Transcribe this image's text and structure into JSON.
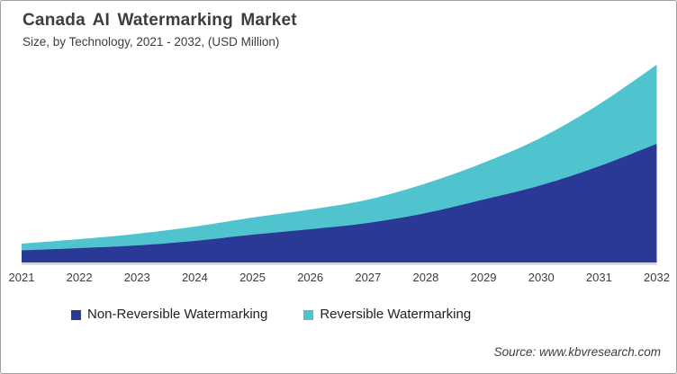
{
  "header": {
    "title": "Canada AI Watermarking Market",
    "subtitle": "Size, by Technology, 2021 - 2032, (USD Million)"
  },
  "source": {
    "label": "Source: www.kbvresearch.com"
  },
  "chart_data": {
    "type": "area",
    "stacked": true,
    "title": "Canada AI Watermarking Market",
    "subtitle": "Size, by Technology, 2021 - 2032, (USD Million)",
    "xlabel": "",
    "ylabel": "",
    "y_axis_labels_visible": false,
    "grid": false,
    "legend_position": "bottom",
    "categories": [
      "2021",
      "2022",
      "2023",
      "2024",
      "2025",
      "2026",
      "2027",
      "2028",
      "2029",
      "2030",
      "2031",
      "2032"
    ],
    "note": "Y axis unlabeled in source image; values are relative estimates read from area heights",
    "series": [
      {
        "name": "Non-Reversible Watermarking",
        "color": "#2A3896",
        "values": [
          13.5,
          16,
          19,
          24,
          31,
          37,
          44,
          55,
          70,
          86,
          107,
          132
        ]
      },
      {
        "name": "Reversible Watermarking",
        "color": "#4FC4CE",
        "values": [
          7.5,
          10,
          13,
          16,
          19,
          22,
          26,
          33,
          41,
          53,
          69,
          88
        ]
      }
    ],
    "baseline_color": "#B3BEE4",
    "text_color": "#3D3D3D"
  }
}
